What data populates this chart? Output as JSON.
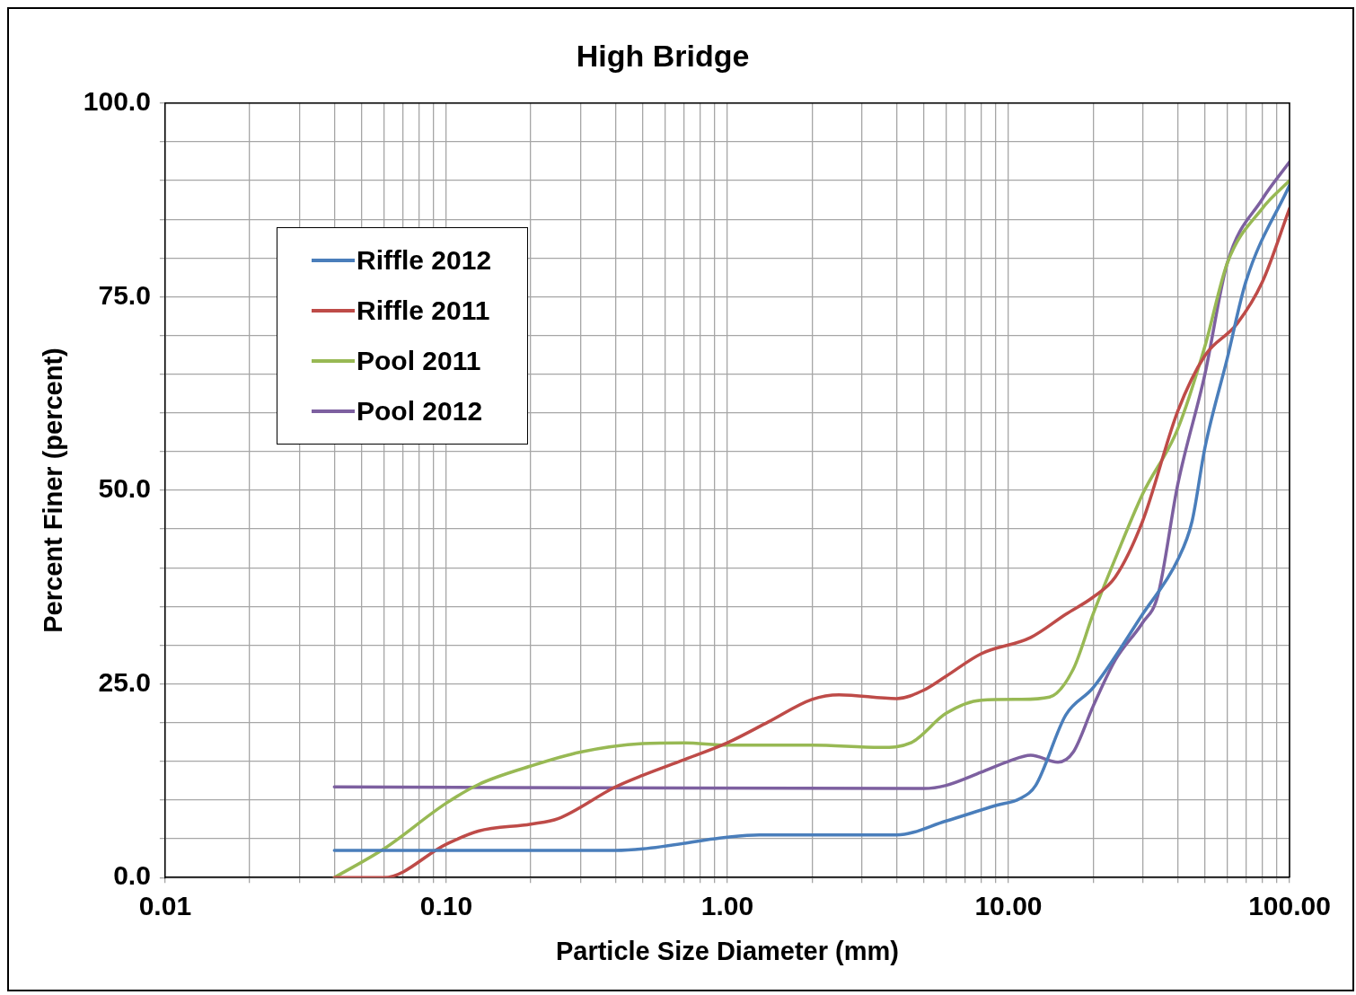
{
  "chart_data": {
    "type": "line",
    "title": "High Bridge",
    "xlabel": "Particle Size Diameter (mm)",
    "ylabel": "Percent Finer (percent)",
    "log": "x",
    "grid": true,
    "legend": "top left",
    "marker": "none",
    "line_style": "solid",
    "xlim": [
      0.01,
      100
    ],
    "ylim": [
      0,
      100
    ],
    "xticks": [
      {
        "value": 0.01,
        "label": "0.01"
      },
      {
        "value": 0.02,
        "label": null
      },
      {
        "value": 0.03,
        "label": null
      },
      {
        "value": 0.04,
        "label": null
      },
      {
        "value": 0.05,
        "label": null
      },
      {
        "value": 0.06,
        "label": null
      },
      {
        "value": 0.07,
        "label": null
      },
      {
        "value": 0.08,
        "label": null
      },
      {
        "value": 0.09,
        "label": null
      },
      {
        "value": 0.1,
        "label": "0.10"
      },
      {
        "value": 0.2,
        "label": null
      },
      {
        "value": 0.3,
        "label": null
      },
      {
        "value": 0.4,
        "label": null
      },
      {
        "value": 0.5,
        "label": null
      },
      {
        "value": 0.6,
        "label": null
      },
      {
        "value": 0.7,
        "label": null
      },
      {
        "value": 0.8,
        "label": null
      },
      {
        "value": 0.9,
        "label": null
      },
      {
        "value": 1,
        "label": "1.00"
      },
      {
        "value": 2,
        "label": null
      },
      {
        "value": 3,
        "label": null
      },
      {
        "value": 4,
        "label": null
      },
      {
        "value": 5,
        "label": null
      },
      {
        "value": 6,
        "label": null
      },
      {
        "value": 7,
        "label": null
      },
      {
        "value": 8,
        "label": null
      },
      {
        "value": 9,
        "label": null
      },
      {
        "value": 10,
        "label": "10.00"
      },
      {
        "value": 20,
        "label": null
      },
      {
        "value": 30,
        "label": null
      },
      {
        "value": 40,
        "label": null
      },
      {
        "value": 50,
        "label": null
      },
      {
        "value": 60,
        "label": null
      },
      {
        "value": 70,
        "label": null
      },
      {
        "value": 80,
        "label": null
      },
      {
        "value": 90,
        "label": null
      },
      {
        "value": 100,
        "label": "100.00"
      }
    ],
    "yticks": [
      {
        "value": 0,
        "label": "0.0"
      },
      {
        "value": 5,
        "label": null
      },
      {
        "value": 10,
        "label": null
      },
      {
        "value": 15,
        "label": null
      },
      {
        "value": 20,
        "label": null
      },
      {
        "value": 25,
        "label": "25.0"
      },
      {
        "value": 30,
        "label": null
      },
      {
        "value": 35,
        "label": null
      },
      {
        "value": 40,
        "label": null
      },
      {
        "value": 45,
        "label": null
      },
      {
        "value": 50,
        "label": "50.0"
      },
      {
        "value": 55,
        "label": null
      },
      {
        "value": 60,
        "label": null
      },
      {
        "value": 65,
        "label": null
      },
      {
        "value": 70,
        "label": null
      },
      {
        "value": 75,
        "label": "75.0"
      },
      {
        "value": 80,
        "label": null
      },
      {
        "value": 85,
        "label": null
      },
      {
        "value": 90,
        "label": null
      },
      {
        "value": 95,
        "label": null
      },
      {
        "value": 100,
        "label": "100.0"
      }
    ],
    "series": [
      {
        "name": "Riffle 2012",
        "color": "#4a7ebb",
        "x": [
          0.04,
          0.4,
          0.5,
          1,
          1.3,
          4,
          6,
          9,
          11,
          12.5,
          16,
          20,
          30,
          40,
          45,
          50,
          60,
          70,
          100
        ],
        "values": [
          3.5,
          3.5,
          3.7,
          5.2,
          5.5,
          5.5,
          7.3,
          9.3,
          10.2,
          11.9,
          21,
          24.5,
          34,
          41,
          46,
          55.5,
          67,
          77,
          89.4
        ]
      },
      {
        "name": "Riffle 2011",
        "color": "#be4b48",
        "x": [
          0.04,
          0.06,
          0.1,
          0.13,
          0.2,
          0.25,
          0.4,
          0.5,
          0.7,
          1,
          1.4,
          2,
          2.5,
          4,
          5,
          6,
          8,
          12,
          16,
          20,
          24,
          30,
          40,
          50,
          65,
          80,
          100
        ],
        "values": [
          0,
          0,
          4.3,
          6,
          6.9,
          7.6,
          11.7,
          13.2,
          15.2,
          17.4,
          20.1,
          23,
          23.6,
          23.1,
          24.2,
          26,
          28.9,
          31,
          34,
          36.2,
          38.8,
          46,
          60.2,
          67.4,
          71.5,
          76.9,
          86.4
        ]
      },
      {
        "name": "Pool 2011",
        "color": "#98b954",
        "x": [
          0.04,
          0.06,
          0.1,
          0.13,
          0.2,
          0.3,
          0.5,
          0.7,
          1,
          2,
          3.5,
          4.5,
          6,
          8,
          11,
          14,
          17,
          20,
          24,
          30,
          40,
          50,
          60,
          80,
          100
        ],
        "values": [
          0,
          3.7,
          9.6,
          12,
          14.4,
          16.2,
          17.3,
          17.4,
          17.1,
          17.1,
          16.8,
          17.4,
          21.2,
          22.9,
          23,
          23.3,
          26.9,
          34,
          41.2,
          49.5,
          57.9,
          68.6,
          79.3,
          86.4,
          90
        ]
      },
      {
        "name": "Pool 2012",
        "color": "#7d60a0",
        "x": [
          0.04,
          5,
          6,
          8,
          10,
          12,
          15,
          17,
          20,
          24,
          30,
          34,
          40,
          50,
          60,
          80,
          100
        ],
        "values": [
          11.7,
          11.5,
          11.9,
          13.6,
          15,
          15.8,
          14.9,
          16.2,
          22.1,
          28.1,
          32.9,
          36.4,
          50.7,
          65,
          79.3,
          87.6,
          92.4
        ]
      }
    ]
  }
}
